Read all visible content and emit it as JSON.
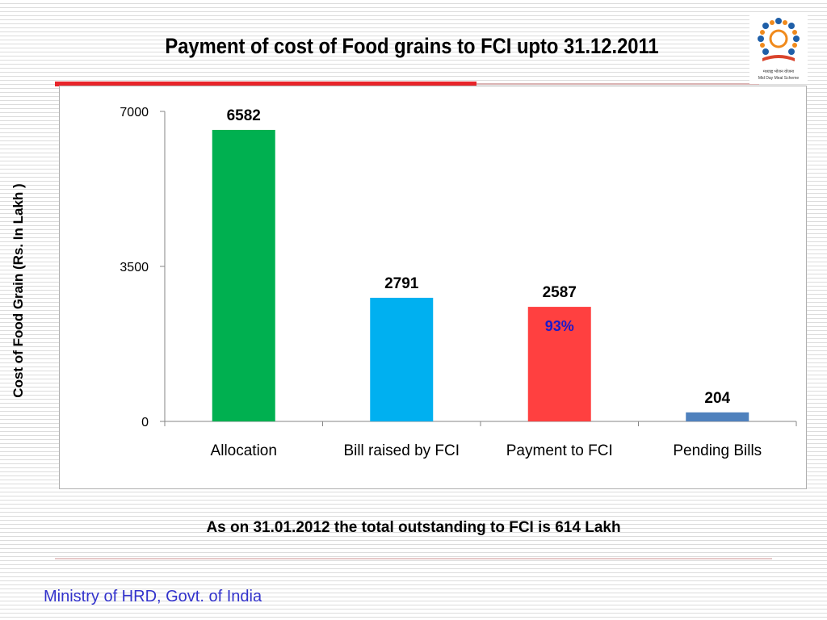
{
  "slide": {
    "title": "Payment of cost of Food grains to FCI upto 31.12.2011",
    "note": "As on 31.01.2012 the total outstanding to FCI is 614 Lakh",
    "footer": "Ministry of HRD, Govt. of India",
    "logo_caption": "Mid Day Meal Scheme",
    "logo_caption_hindi": "मध्याह्न भोजन योजना"
  },
  "colors": {
    "title_bar": "#e8242a",
    "footer_text": "#3333cc",
    "percent_text": "#1a1acc"
  },
  "chart_data": {
    "type": "bar",
    "title": "",
    "xlabel": "",
    "ylabel": "Cost of Food Grain (Rs. In Lakh )",
    "categories": [
      "Allocation",
      "Bill raised by FCI",
      "Payment to FCI",
      "Pending Bills"
    ],
    "values": [
      6582,
      2791,
      2587,
      204
    ],
    "data_labels": [
      "6582",
      "2791",
      "2587",
      "204"
    ],
    "bar_colors": [
      "#00b050",
      "#00b0f0",
      "#ff4040",
      "#4f81bd"
    ],
    "annotations": [
      {
        "category": "Payment to FCI",
        "text": "93%"
      }
    ],
    "ylim": [
      0,
      7000
    ],
    "yticks": [
      0,
      3500,
      7000
    ],
    "grid": false,
    "legend": "none"
  }
}
